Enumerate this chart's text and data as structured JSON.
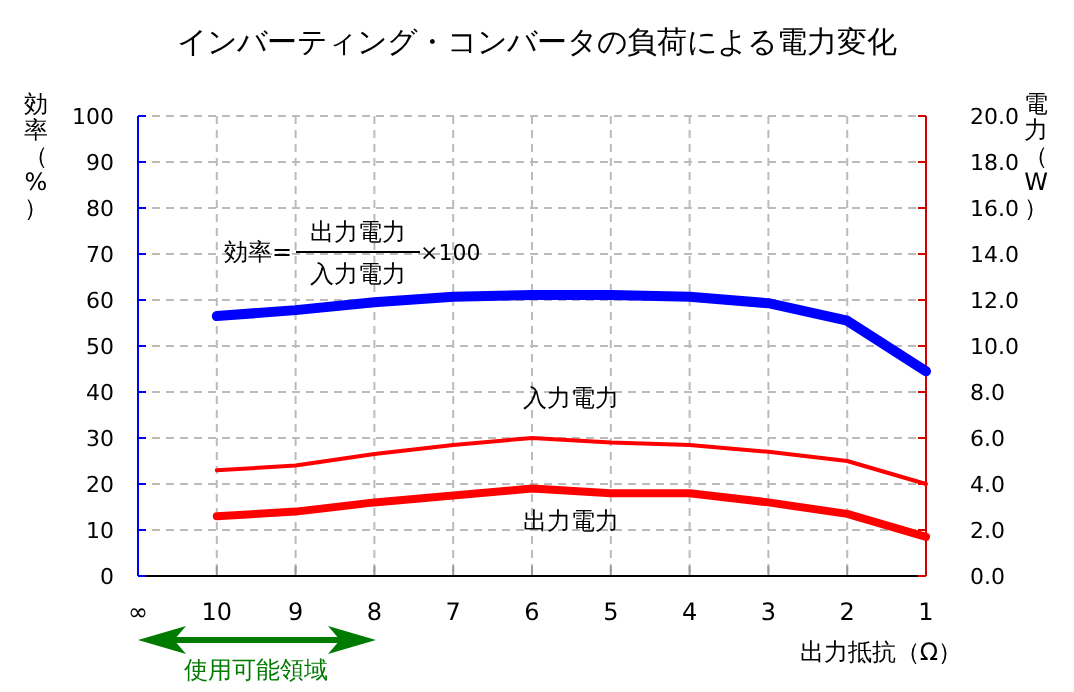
{
  "chart_data": {
    "type": "line",
    "title": "インバーティング・コンバータの負荷による電力変化",
    "xlabel": "出力抵抗（Ω）",
    "ylabel": "効率（%）",
    "y2label": "電力（W）",
    "categories": [
      "∞",
      "10",
      "9",
      "8",
      "7",
      "6",
      "5",
      "4",
      "3",
      "2",
      "1"
    ],
    "series": [
      {
        "color": "#0000ff",
        "values": [
          null,
          56.5,
          57.8,
          59.5,
          60.7,
          61.1,
          61.1,
          60.7,
          59.3,
          55.5,
          44.5
        ]
      },
      {
        "name": "入力電力",
        "color": "#ff0000",
        "axis": "y2",
        "values": [
          null,
          4.6,
          4.8,
          5.3,
          5.7,
          6.0,
          5.8,
          5.7,
          5.4,
          5.0,
          4.0
        ]
      },
      {
        "name": "出力電力",
        "color": "#ff0000",
        "axis": "y2",
        "values": [
          null,
          2.6,
          2.8,
          3.2,
          3.5,
          3.8,
          3.6,
          3.6,
          3.2,
          2.7,
          1.7
        ]
      }
    ],
    "ylim": [
      0,
      100
    ],
    "yticks": [
      0,
      10,
      20,
      30,
      40,
      50,
      60,
      70,
      80,
      90,
      100
    ],
    "y2lim": [
      0,
      20
    ],
    "y2ticks": [
      {
        "value": 0,
        "label": "0.0"
      },
      {
        "value": 2,
        "label": "2.0"
      },
      {
        "value": 4,
        "label": "4.0"
      },
      {
        "value": 6,
        "label": "6.0"
      },
      {
        "value": 8,
        "label": "8.0"
      },
      {
        "value": 10,
        "label": "10.0"
      },
      {
        "value": 12,
        "label": "12.0"
      },
      {
        "value": 14,
        "label": "14.0"
      },
      {
        "value": 16,
        "label": "16.0"
      },
      {
        "value": 18,
        "label": "18.0"
      },
      {
        "value": 20,
        "label": "20.0"
      }
    ],
    "grid": true,
    "annotations": [
      "効率=",
      "出力電力",
      "入力電力",
      "×100",
      "使用可能領域"
    ]
  }
}
